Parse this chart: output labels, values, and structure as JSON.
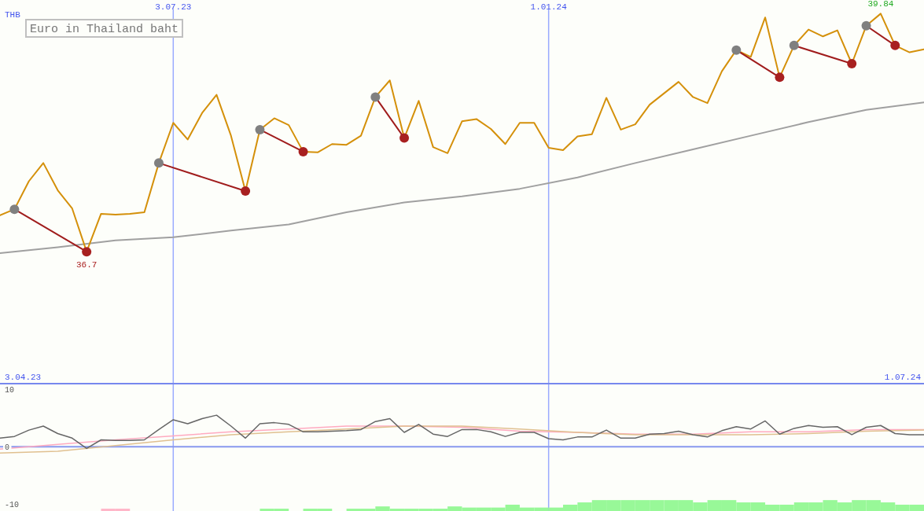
{
  "chart_data": [
    {
      "type": "line",
      "title": "Euro in Thailand baht",
      "ylabel": "THB",
      "xlim": [
        "2023-04-10",
        "2024-07-01"
      ],
      "ylim": [
        34.96,
        40.02
      ],
      "xticks": [
        {
          "value": "2023-07-03",
          "label": "3.07.23"
        },
        {
          "value": "2024-01-01",
          "label": "1.01.24"
        }
      ],
      "tick_labels": "x",
      "grid": "x",
      "annotations": [
        "3.04.23",
        "1.07.24"
      ],
      "x": [
        "2023-04-10",
        "2023-04-17",
        "2023-04-24",
        "2023-05-01",
        "2023-05-08",
        "2023-05-15",
        "2023-05-22",
        "2023-05-29",
        "2023-06-05",
        "2023-06-12",
        "2023-06-19",
        "2023-06-26",
        "2023-07-03",
        "2023-07-10",
        "2023-07-17",
        "2023-07-24",
        "2023-07-31",
        "2023-08-07",
        "2023-08-14",
        "2023-08-21",
        "2023-08-28",
        "2023-09-04",
        "2023-09-11",
        "2023-09-18",
        "2023-09-25",
        "2023-10-02",
        "2023-10-09",
        "2023-10-16",
        "2023-10-23",
        "2023-10-30",
        "2023-11-06",
        "2023-11-13",
        "2023-11-20",
        "2023-11-27",
        "2023-12-04",
        "2023-12-11",
        "2023-12-18",
        "2023-12-25",
        "2024-01-01",
        "2024-01-08",
        "2024-01-15",
        "2024-01-22",
        "2024-01-29",
        "2024-02-05",
        "2024-02-12",
        "2024-02-19",
        "2024-02-26",
        "2024-03-04",
        "2024-03-11",
        "2024-03-18",
        "2024-03-25",
        "2024-04-01",
        "2024-04-08",
        "2024-04-15",
        "2024-04-22",
        "2024-04-29",
        "2024-05-06",
        "2024-05-13",
        "2024-05-20",
        "2024-05-27",
        "2024-06-03",
        "2024-06-10",
        "2024-06-17",
        "2024-06-24",
        "2024-07-01"
      ],
      "series": [
        {
          "color": "#a0a0a0",
          "x": [
            "2023-04-10",
            "2023-05-08",
            "2023-06-05",
            "2023-07-03",
            "2023-07-31",
            "2023-08-28",
            "2023-09-25",
            "2023-10-23",
            "2023-11-20",
            "2023-12-18",
            "2024-01-15",
            "2024-02-12",
            "2024-03-11",
            "2024-04-08",
            "2024-05-06",
            "2024-06-03",
            "2024-07-01"
          ],
          "values": [
            36.68,
            36.76,
            36.85,
            36.89,
            36.98,
            37.06,
            37.22,
            37.35,
            37.43,
            37.53,
            37.68,
            37.87,
            38.05,
            38.23,
            38.41,
            38.57,
            38.67
          ]
        },
        {
          "color": "#d4900a",
          "value_labels": [
            null,
            null,
            null,
            null,
            null,
            null,
            "36.7",
            null,
            null,
            null,
            null,
            null,
            null,
            null,
            null,
            null,
            null,
            null,
            null,
            null,
            null,
            null,
            null,
            null,
            null,
            null,
            null,
            null,
            null,
            null,
            null,
            null,
            null,
            null,
            null,
            null,
            null,
            null,
            null,
            null,
            null,
            null,
            null,
            null,
            null,
            null,
            null,
            null,
            null,
            null,
            null,
            null,
            null,
            null,
            null,
            null,
            null,
            null,
            null,
            null,
            null,
            "39.84",
            null,
            null,
            null
          ],
          "values": [
            37.18,
            37.26,
            37.63,
            37.87,
            37.51,
            37.27,
            36.7,
            37.2,
            37.19,
            37.2,
            37.22,
            37.87,
            38.4,
            38.18,
            38.53,
            38.77,
            38.23,
            37.5,
            38.31,
            38.46,
            38.37,
            38.02,
            38.01,
            38.12,
            38.11,
            38.23,
            38.74,
            38.96,
            38.2,
            38.69,
            38.08,
            38.0,
            38.42,
            38.45,
            38.32,
            38.12,
            38.4,
            38.4,
            38.07,
            38.04,
            38.22,
            38.25,
            38.73,
            38.31,
            38.38,
            38.64,
            38.79,
            38.94,
            38.74,
            38.66,
            39.08,
            39.36,
            39.27,
            39.79,
            39.0,
            39.42,
            39.63,
            39.54,
            39.62,
            39.18,
            39.68,
            39.84,
            39.42,
            39.33,
            39.37
          ]
        },
        {
          "color": "#a01c1c",
          "x": [
            "2023-04-17",
            "2023-05-22"
          ],
          "values": [
            37.26,
            36.7
          ]
        },
        {
          "color": "#a01c1c",
          "x": [
            "2023-06-26",
            "2023-08-07"
          ],
          "values": [
            37.87,
            37.5
          ]
        },
        {
          "color": "#a01c1c",
          "x": [
            "2023-08-14",
            "2023-09-04"
          ],
          "values": [
            38.31,
            38.02
          ]
        },
        {
          "color": "#a01c1c",
          "x": [
            "2023-10-09",
            "2023-10-23"
          ],
          "values": [
            38.74,
            38.2
          ]
        },
        {
          "color": "#a01c1c",
          "x": [
            "2024-04-01",
            "2024-04-22"
          ],
          "values": [
            39.36,
            39.0
          ]
        },
        {
          "color": "#a01c1c",
          "x": [
            "2024-04-29",
            "2024-05-27"
          ],
          "values": [
            39.42,
            39.18
          ]
        },
        {
          "color": "#a01c1c",
          "x": [
            "2024-06-03",
            "2024-06-17"
          ],
          "values": [
            39.68,
            39.42
          ]
        },
        {
          "type": "scatter",
          "marker": "circle",
          "color": "#808080",
          "x": [
            "2023-04-17",
            "2023-06-26",
            "2023-08-14",
            "2023-10-09",
            "2024-04-01",
            "2024-04-29",
            "2024-06-03"
          ],
          "values": [
            37.26,
            37.87,
            38.31,
            38.74,
            39.36,
            39.42,
            39.68
          ]
        },
        {
          "type": "scatter",
          "marker": "circle",
          "color": "#a82020",
          "x": [
            "2023-05-22",
            "2023-08-07",
            "2023-09-04",
            "2023-10-23",
            "2024-04-22",
            "2024-05-27",
            "2024-06-17"
          ],
          "values": [
            36.7,
            37.5,
            38.02,
            38.2,
            39.0,
            39.18,
            39.42
          ]
        }
      ]
    },
    {
      "type": "line",
      "xlim": [
        "2023-04-10",
        "2024-07-01"
      ],
      "ylim": [
        -11.2,
        11
      ],
      "yticks": [
        10,
        0,
        -10
      ],
      "xticks": [
        {
          "value": "2023-07-03",
          "label": null
        },
        {
          "value": "2024-01-01",
          "label": null
        }
      ],
      "tick_labels": "y",
      "grid": "x",
      "ref_lines": [
        {
          "axis": "y",
          "value": 0,
          "color": "#8899ee"
        }
      ],
      "x": [
        "2023-04-10",
        "2023-04-17",
        "2023-04-24",
        "2023-05-01",
        "2023-05-08",
        "2023-05-15",
        "2023-05-22",
        "2023-05-29",
        "2023-06-05",
        "2023-06-12",
        "2023-06-19",
        "2023-06-26",
        "2023-07-03",
        "2023-07-10",
        "2023-07-17",
        "2023-07-24",
        "2023-07-31",
        "2023-08-07",
        "2023-08-14",
        "2023-08-21",
        "2023-08-28",
        "2023-09-04",
        "2023-09-11",
        "2023-09-18",
        "2023-09-25",
        "2023-10-02",
        "2023-10-09",
        "2023-10-16",
        "2023-10-23",
        "2023-10-30",
        "2023-11-06",
        "2023-11-13",
        "2023-11-20",
        "2023-11-27",
        "2023-12-04",
        "2023-12-11",
        "2023-12-18",
        "2023-12-25",
        "2024-01-01",
        "2024-01-08",
        "2024-01-15",
        "2024-01-22",
        "2024-01-29",
        "2024-02-05",
        "2024-02-12",
        "2024-02-19",
        "2024-02-26",
        "2024-03-04",
        "2024-03-11",
        "2024-03-18",
        "2024-03-25",
        "2024-04-01",
        "2024-04-08",
        "2024-04-15",
        "2024-04-22",
        "2024-04-29",
        "2024-05-06",
        "2024-05-13",
        "2024-05-20",
        "2024-05-27",
        "2024-06-03",
        "2024-06-10",
        "2024-06-17",
        "2024-06-24",
        "2024-07-01"
      ],
      "series": [
        {
          "type": "bar",
          "color": "#ffb6c8",
          "x": [
            "2023-05-29",
            "2023-06-05"
          ],
          "base": [
            -11.2,
            -11.2
          ],
          "values": [
            0.4,
            0.4
          ]
        },
        {
          "type": "bar",
          "color": "#98f898",
          "x": [
            "2023-08-14",
            "2023-08-21",
            "2023-09-04",
            "2023-09-11",
            "2023-09-25",
            "2023-10-02",
            "2023-10-09",
            "2023-10-16",
            "2023-10-23",
            "2023-10-30",
            "2023-11-06",
            "2023-11-13",
            "2023-11-20",
            "2023-11-27",
            "2023-12-04",
            "2023-12-11",
            "2023-12-18",
            "2023-12-25",
            "2024-01-01",
            "2024-01-08",
            "2024-01-15",
            "2024-01-22",
            "2024-01-29",
            "2024-02-05",
            "2024-02-12",
            "2024-02-19",
            "2024-02-26",
            "2024-03-04",
            "2024-03-11",
            "2024-03-18",
            "2024-03-25",
            "2024-04-01",
            "2024-04-08",
            "2024-04-15",
            "2024-04-22",
            "2024-04-29",
            "2024-05-06",
            "2024-05-13",
            "2024-05-20",
            "2024-05-27",
            "2024-06-03",
            "2024-06-10",
            "2024-06-17",
            "2024-06-24"
          ],
          "base": [
            -11.2,
            -11.2,
            -11.2,
            -11.2,
            -11.2,
            -11.2,
            -11.2,
            -11.2,
            -11.2,
            -11.2,
            -11.2,
            -11.2,
            -11.2,
            -11.2,
            -11.2,
            -11.2,
            -11.2,
            -11.2,
            -11.2,
            -11.2,
            -11.2,
            -11.2,
            -11.2,
            -11.2,
            -11.2,
            -11.2,
            -11.2,
            -11.2,
            -11.2,
            -11.2,
            -11.2,
            -11.2,
            -11.2,
            -11.2,
            -11.2,
            -11.2,
            -11.2,
            -11.2,
            -11.2,
            -11.2,
            -11.2,
            -11.2,
            -11.2,
            -11.2
          ],
          "values": [
            0.4,
            0.4,
            0.4,
            0.4,
            0.4,
            0.4,
            0.8,
            0.4,
            0.4,
            0.4,
            0.4,
            0.8,
            0.6,
            0.6,
            0.6,
            1.1,
            0.6,
            0.6,
            0.6,
            1.1,
            1.5,
            1.9,
            1.9,
            1.9,
            1.9,
            1.9,
            1.9,
            1.9,
            1.5,
            1.9,
            1.9,
            1.5,
            1.5,
            1.1,
            1.1,
            1.5,
            1.5,
            1.9,
            1.5,
            1.9,
            1.9,
            1.5,
            1.1,
            1.1
          ]
        },
        {
          "color": "#ffaac0",
          "x": [
            "2023-04-10",
            "2023-05-08",
            "2023-06-05",
            "2023-07-03",
            "2023-07-31",
            "2023-08-28",
            "2023-09-25",
            "2023-10-23",
            "2023-11-20",
            "2023-12-18",
            "2024-01-15",
            "2024-02-12",
            "2024-03-11",
            "2024-04-08",
            "2024-05-06",
            "2024-06-03",
            "2024-07-01"
          ],
          "values": [
            -0.4,
            0.4,
            1.2,
            1.9,
            2.6,
            3.1,
            3.6,
            3.6,
            3.4,
            2.7,
            2.5,
            2.2,
            2.2,
            2.6,
            2.6,
            3.0,
            3.0
          ]
        },
        {
          "color": "#e0c090",
          "x": [
            "2023-04-10",
            "2023-05-08",
            "2023-06-05",
            "2023-07-03",
            "2023-07-31",
            "2023-08-28",
            "2023-09-25",
            "2023-10-23",
            "2023-11-20",
            "2023-12-18",
            "2024-01-15",
            "2024-02-12",
            "2024-03-11",
            "2024-04-08",
            "2024-05-06",
            "2024-06-03",
            "2024-07-01"
          ],
          "values": [
            -1.1,
            -0.8,
            0.2,
            1.2,
            2.1,
            2.6,
            3.1,
            3.6,
            3.6,
            3.1,
            2.5,
            2.1,
            2.1,
            2.1,
            2.3,
            2.7,
            2.9
          ]
        },
        {
          "color": "#666666",
          "values": [
            1.5,
            1.8,
            2.9,
            3.6,
            2.3,
            1.5,
            -0.3,
            1.2,
            1.1,
            1.1,
            1.2,
            3.0,
            4.7,
            4.0,
            4.9,
            5.5,
            3.6,
            1.5,
            4.0,
            4.2,
            3.9,
            2.6,
            2.6,
            2.7,
            2.8,
            3.0,
            4.4,
            4.9,
            2.5,
            3.9,
            2.2,
            1.8,
            3.0,
            3.0,
            2.6,
            1.8,
            2.5,
            2.5,
            1.4,
            1.2,
            1.7,
            1.7,
            2.9,
            1.5,
            1.5,
            2.2,
            2.3,
            2.7,
            2.1,
            1.7,
            2.8,
            3.5,
            3.1,
            4.5,
            2.2,
            3.2,
            3.7,
            3.4,
            3.5,
            2.1,
            3.4,
            3.7,
            2.3,
            2.1,
            2.1
          ]
        }
      ]
    }
  ]
}
